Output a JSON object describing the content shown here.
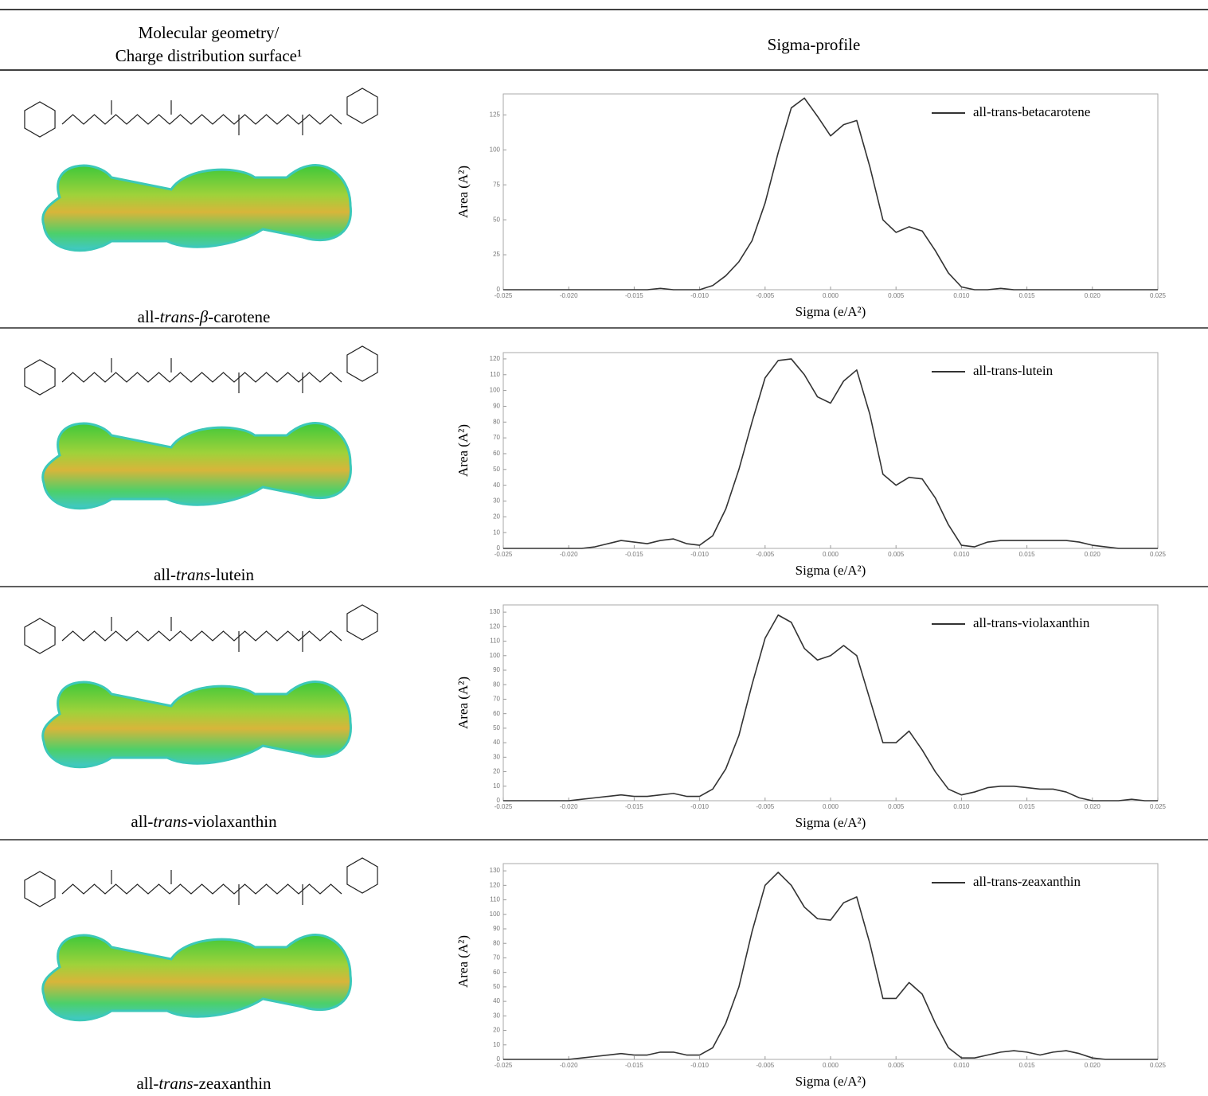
{
  "header": {
    "left": [
      "Molecular geometry/",
      "Charge distribution surface¹"
    ],
    "right": "Sigma-profile"
  },
  "rows": [
    {
      "name": [
        "all-",
        "trans-β",
        "-carotene"
      ]
    },
    {
      "name": [
        "all-",
        "trans",
        "-lutein"
      ]
    },
    {
      "name": [
        "all-",
        "trans",
        "-violaxanthin"
      ]
    },
    {
      "name": [
        "all-",
        "trans",
        "-zeaxanthin"
      ]
    }
  ],
  "chart_data": [
    {
      "type": "line",
      "y_label": "Area (A²)",
      "x_label": "Sigma (e/A²)",
      "legend": "upper right",
      "x": [
        -0.025,
        -0.024,
        -0.023,
        -0.022,
        -0.021,
        -0.02,
        -0.019,
        -0.018,
        -0.017,
        -0.016,
        -0.015,
        -0.014,
        -0.013,
        -0.012,
        -0.011,
        -0.01,
        -0.009,
        -0.008,
        -0.007,
        -0.006,
        -0.005,
        -0.004,
        -0.003,
        -0.002,
        -0.001,
        0,
        0.001,
        0.002,
        0.003,
        0.004,
        0.005,
        0.006,
        0.007,
        0.008,
        0.009,
        0.01,
        0.011,
        0.012,
        0.013,
        0.014,
        0.015,
        0.016,
        0.017,
        0.018,
        0.019,
        0.02,
        0.021,
        0.022,
        0.023,
        0.024,
        0.025
      ],
      "series": [
        {
          "name": "all-trans-betacarotene",
          "color": "#333333",
          "values": [
            0,
            0,
            0,
            0,
            0,
            0,
            0,
            0,
            0,
            0,
            0,
            0,
            1,
            0,
            0,
            0,
            3,
            10,
            20,
            35,
            62,
            98,
            130,
            137,
            124,
            110,
            118,
            121,
            88,
            50,
            41,
            45,
            42,
            28,
            12,
            2,
            0,
            0,
            1,
            0,
            0,
            0,
            0,
            0,
            0,
            0,
            0,
            0,
            0,
            0,
            0
          ]
        }
      ],
      "xlim": [
        -0.025,
        0.025
      ],
      "ylim": [
        0,
        140
      ],
      "xticks": [
        -0.025,
        {
          "value": -0.02,
          "label": "-0.020"
        },
        -0.015,
        {
          "value": -0.01,
          "label": "-0.010"
        },
        -0.005,
        {
          "value": 0,
          "label": "0.000"
        },
        0.005,
        {
          "value": 0.01,
          "label": "0.010"
        },
        0.015,
        {
          "value": 0.02,
          "label": "0.020"
        },
        0.025
      ],
      "yticks": [
        0,
        25,
        50,
        75,
        100,
        125
      ]
    },
    {
      "type": "line",
      "y_label": "Area (A²)",
      "x_label": "Sigma (e/A²)",
      "legend": "upper right",
      "x": [
        -0.025,
        -0.024,
        -0.023,
        -0.022,
        -0.021,
        -0.02,
        -0.019,
        -0.018,
        -0.017,
        -0.016,
        -0.015,
        -0.014,
        -0.013,
        -0.012,
        -0.011,
        -0.01,
        -0.009,
        -0.008,
        -0.007,
        -0.006,
        -0.005,
        -0.004,
        -0.003,
        -0.002,
        -0.001,
        0,
        0.001,
        0.002,
        0.003,
        0.004,
        0.005,
        0.006,
        0.007,
        0.008,
        0.009,
        0.01,
        0.011,
        0.012,
        0.013,
        0.014,
        0.015,
        0.016,
        0.017,
        0.018,
        0.019,
        0.02,
        0.021,
        0.022,
        0.023,
        0.024,
        0.025
      ],
      "series": [
        {
          "name": "all-trans-lutein",
          "color": "#333333",
          "values": [
            0,
            0,
            0,
            0,
            0,
            0,
            0,
            1,
            3,
            5,
            4,
            3,
            5,
            6,
            3,
            2,
            8,
            25,
            50,
            80,
            108,
            119,
            120,
            110,
            96,
            92,
            106,
            113,
            85,
            47,
            40,
            45,
            44,
            32,
            15,
            2,
            1,
            4,
            5,
            5,
            5,
            5,
            5,
            5,
            4,
            2,
            1,
            0,
            0,
            0,
            0
          ]
        }
      ],
      "xlim": [
        -0.025,
        0.025
      ],
      "ylim": [
        0,
        124
      ],
      "xticks": [
        -0.025,
        {
          "value": -0.02,
          "label": "-0.020"
        },
        -0.015,
        {
          "value": -0.01,
          "label": "-0.010"
        },
        -0.005,
        {
          "value": 0,
          "label": "0.000"
        },
        0.005,
        {
          "value": 0.01,
          "label": "0.010"
        },
        0.015,
        {
          "value": 0.02,
          "label": "0.020"
        },
        0.025
      ],
      "yticks": [
        0,
        10,
        20,
        30,
        40,
        50,
        60,
        70,
        80,
        90,
        100,
        110,
        120
      ]
    },
    {
      "type": "line",
      "y_label": "Area (A²)",
      "x_label": "Sigma (e/A²)",
      "legend": "upper right",
      "x": [
        -0.025,
        -0.024,
        -0.023,
        -0.022,
        -0.021,
        -0.02,
        -0.019,
        -0.018,
        -0.017,
        -0.016,
        -0.015,
        -0.014,
        -0.013,
        -0.012,
        -0.011,
        -0.01,
        -0.009,
        -0.008,
        -0.007,
        -0.006,
        -0.005,
        -0.004,
        -0.003,
        -0.002,
        -0.001,
        0,
        0.001,
        0.002,
        0.003,
        0.004,
        0.005,
        0.006,
        0.007,
        0.008,
        0.009,
        0.01,
        0.011,
        0.012,
        0.013,
        0.014,
        0.015,
        0.016,
        0.017,
        0.018,
        0.019,
        0.02,
        0.021,
        0.022,
        0.023,
        0.024,
        0.025
      ],
      "series": [
        {
          "name": "all-trans-violaxanthin",
          "color": "#333333",
          "values": [
            0,
            0,
            0,
            0,
            0,
            0,
            1,
            2,
            3,
            4,
            3,
            3,
            4,
            5,
            3,
            3,
            8,
            22,
            45,
            80,
            112,
            128,
            123,
            105,
            97,
            100,
            107,
            100,
            70,
            40,
            40,
            48,
            35,
            20,
            8,
            4,
            6,
            9,
            10,
            10,
            9,
            8,
            8,
            6,
            2,
            0,
            0,
            0,
            1,
            0,
            0
          ]
        }
      ],
      "xlim": [
        -0.025,
        0.025
      ],
      "ylim": [
        0,
        135
      ],
      "xticks": [
        -0.025,
        {
          "value": -0.02,
          "label": "-0.020"
        },
        -0.015,
        {
          "value": -0.01,
          "label": "-0.010"
        },
        -0.005,
        {
          "value": 0,
          "label": "0.000"
        },
        0.005,
        {
          "value": 0.01,
          "label": "0.010"
        },
        0.015,
        {
          "value": 0.02,
          "label": "0.020"
        },
        0.025
      ],
      "yticks": [
        0,
        10,
        20,
        30,
        40,
        50,
        60,
        70,
        80,
        90,
        100,
        110,
        120,
        130
      ]
    },
    {
      "type": "line",
      "y_label": "Area (A²)",
      "x_label": "Sigma (e/A²)",
      "legend": "upper right",
      "x": [
        -0.025,
        -0.024,
        -0.023,
        -0.022,
        -0.021,
        -0.02,
        -0.019,
        -0.018,
        -0.017,
        -0.016,
        -0.015,
        -0.014,
        -0.013,
        -0.012,
        -0.011,
        -0.01,
        -0.009,
        -0.008,
        -0.007,
        -0.006,
        -0.005,
        -0.004,
        -0.003,
        -0.002,
        -0.001,
        0,
        0.001,
        0.002,
        0.003,
        0.004,
        0.005,
        0.006,
        0.007,
        0.008,
        0.009,
        0.01,
        0.011,
        0.012,
        0.013,
        0.014,
        0.015,
        0.016,
        0.017,
        0.018,
        0.019,
        0.02,
        0.021,
        0.022,
        0.023,
        0.024,
        0.025
      ],
      "series": [
        {
          "name": "all-trans-zeaxanthin",
          "color": "#333333",
          "values": [
            0,
            0,
            0,
            0,
            0,
            0,
            1,
            2,
            3,
            4,
            3,
            3,
            5,
            5,
            3,
            3,
            8,
            25,
            50,
            88,
            120,
            129,
            120,
            105,
            97,
            96,
            108,
            112,
            80,
            42,
            42,
            53,
            45,
            25,
            8,
            1,
            1,
            3,
            5,
            6,
            5,
            3,
            5,
            6,
            4,
            1,
            0,
            0,
            0,
            0,
            0
          ]
        }
      ],
      "xlim": [
        -0.025,
        0.025
      ],
      "ylim": [
        0,
        135
      ],
      "xticks": [
        -0.025,
        {
          "value": -0.02,
          "label": "-0.020"
        },
        -0.015,
        {
          "value": -0.01,
          "label": "-0.010"
        },
        -0.005,
        {
          "value": 0,
          "label": "0.000"
        },
        0.005,
        {
          "value": 0.01,
          "label": "0.010"
        },
        0.015,
        {
          "value": 0.02,
          "label": "0.020"
        },
        0.025
      ],
      "yticks": [
        0,
        10,
        20,
        30,
        40,
        50,
        60,
        70,
        80,
        90,
        100,
        110,
        120,
        130
      ]
    }
  ]
}
